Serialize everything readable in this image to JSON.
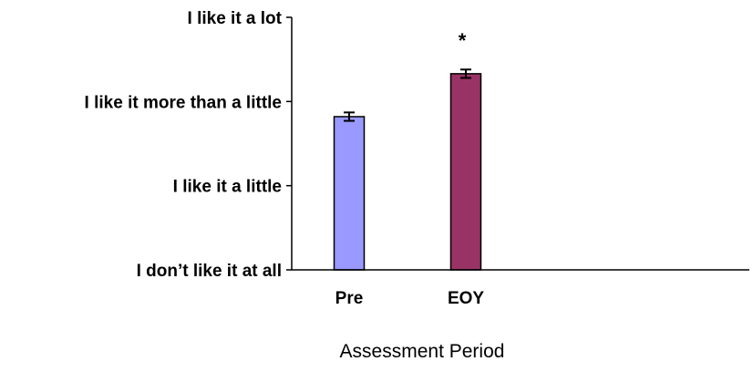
{
  "chart_data": {
    "type": "bar",
    "title": "",
    "xlabel": "Assessment Period",
    "ylabel": "",
    "categories": [
      "Pre",
      "EOY"
    ],
    "values": [
      1.82,
      2.33
    ],
    "error": [
      0.05,
      0.05
    ],
    "ylim": [
      0,
      3
    ],
    "yticks": [
      0,
      1,
      2,
      3
    ],
    "ytick_labels": [
      "I don’t like it at all",
      "I like it a little",
      "I like it more than a little",
      "I like it a lot"
    ],
    "bar_colors": [
      "#9999ff",
      "#993366"
    ],
    "annotations": [
      {
        "category": "EOY",
        "text": "*"
      }
    ],
    "grid": false,
    "legend": "none"
  }
}
